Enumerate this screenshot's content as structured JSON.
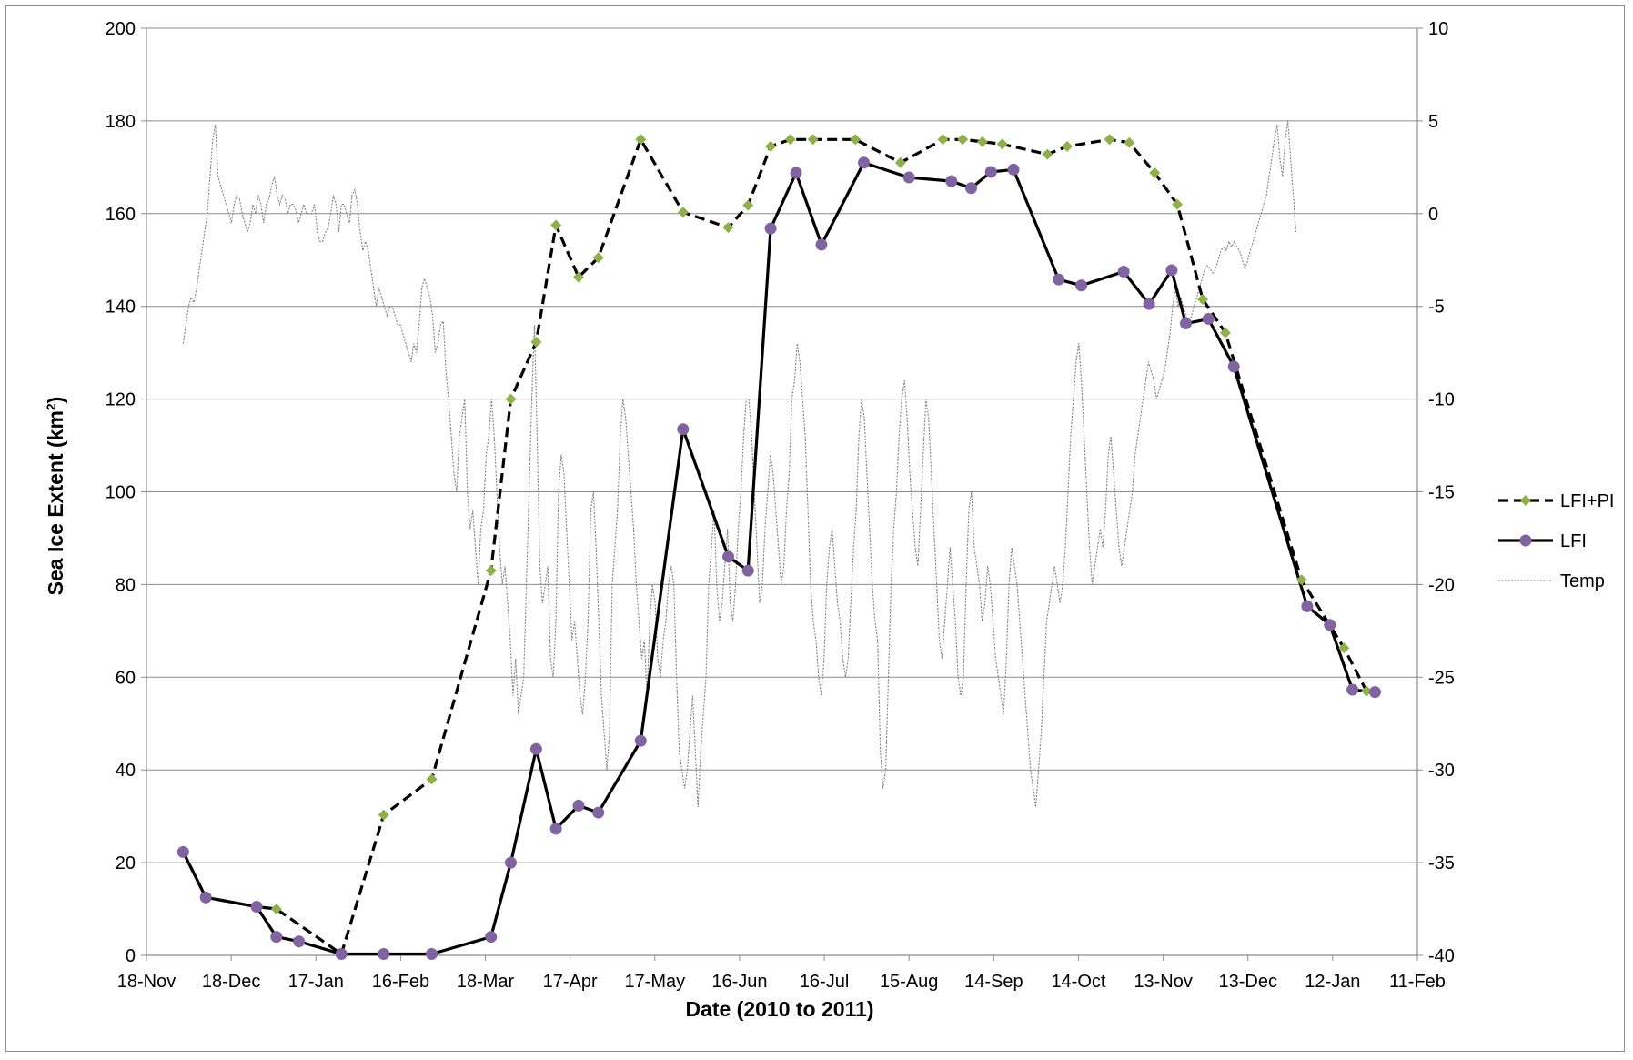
{
  "chart_data": {
    "type": "line",
    "xlabel": "Date (2010 to 2011)",
    "ylabel": "Sea Ice Extent (km",
    "ylabel_sup": "2",
    "ylabel_close": ")",
    "x_axis": {
      "range": [
        "2010-11-18",
        "2012-02-11"
      ],
      "tick_dates": [
        "2010-11-18",
        "2010-12-18",
        "2011-01-17",
        "2011-02-16",
        "2011-03-18",
        "2011-04-17",
        "2011-05-17",
        "2011-06-16",
        "2011-07-16",
        "2011-08-15",
        "2011-09-14",
        "2011-10-14",
        "2011-11-13",
        "2011-12-13",
        "2012-01-12",
        "2012-02-11"
      ],
      "tick_labels": [
        "18-Nov",
        "18-Dec",
        "17-Jan",
        "16-Feb",
        "18-Mar",
        "17-Apr",
        "17-May",
        "16-Jun",
        "16-Jul",
        "15-Aug",
        "14-Sep",
        "14-Oct",
        "13-Nov",
        "13-Dec",
        "12-Jan",
        "11-Feb"
      ]
    },
    "y_left": {
      "range": [
        0,
        200
      ],
      "ticks": [
        "0",
        "20",
        "40",
        "60",
        "80",
        "100",
        "120",
        "140",
        "160",
        "180",
        "200"
      ]
    },
    "y_right": {
      "range": [
        -40,
        10
      ],
      "ticks": [
        "-40",
        "-35",
        "-30",
        "-25",
        "-20",
        "-15",
        "-10",
        "-5",
        "0",
        "5",
        "10"
      ]
    },
    "grid": "horizontal",
    "legend_position": "right",
    "series": [
      {
        "name": "LFI+PI",
        "axis": "left",
        "style": "dashed",
        "line_color": "#000000",
        "marker": "diamond",
        "marker_color": "#8DB04A",
        "points": [
          [
            "2010-12-01",
            22.3
          ],
          [
            "2010-12-09",
            12.5
          ],
          [
            "2010-12-27",
            10.5
          ],
          [
            "2011-01-03",
            10
          ],
          [
            "2011-01-26",
            0.3
          ],
          [
            "2011-02-10",
            30.3
          ],
          [
            "2011-02-27",
            38
          ],
          [
            "2011-03-20",
            83
          ],
          [
            "2011-03-27",
            120
          ],
          [
            "2011-04-05",
            132.3
          ],
          [
            "2011-04-12",
            157.5
          ],
          [
            "2011-04-20",
            146.3
          ],
          [
            "2011-04-27",
            150.5
          ],
          [
            "2011-05-12",
            176
          ],
          [
            "2011-05-27",
            160.3
          ],
          [
            "2011-06-12",
            157
          ],
          [
            "2011-06-19",
            161.8
          ],
          [
            "2011-06-27",
            174.5
          ],
          [
            "2011-07-04",
            176
          ],
          [
            "2011-07-12",
            176
          ],
          [
            "2011-07-27",
            176
          ],
          [
            "2011-08-12",
            171
          ],
          [
            "2011-08-27",
            176
          ],
          [
            "2011-09-03",
            176
          ],
          [
            "2011-09-10",
            175.5
          ],
          [
            "2011-09-17",
            175
          ],
          [
            "2011-10-03",
            172.8
          ],
          [
            "2011-10-10",
            174.5
          ],
          [
            "2011-10-25",
            176
          ],
          [
            "2011-11-01",
            175.3
          ],
          [
            "2011-11-10",
            168.8
          ],
          [
            "2011-11-18",
            162
          ],
          [
            "2011-11-27",
            141.5
          ],
          [
            "2011-12-05",
            134.3
          ],
          [
            "2012-01-01",
            81
          ],
          [
            "2012-01-16",
            66.3
          ],
          [
            "2012-01-24",
            57
          ]
        ]
      },
      {
        "name": "LFI",
        "axis": "left",
        "style": "solid",
        "line_color": "#000000",
        "marker": "circle",
        "marker_color": "#8064A2",
        "points": [
          [
            "2010-12-01",
            22.3
          ],
          [
            "2010-12-09",
            12.5
          ],
          [
            "2010-12-27",
            10.5
          ],
          [
            "2011-01-03",
            4
          ],
          [
            "2011-01-11",
            3
          ],
          [
            "2011-01-26",
            0.3
          ],
          [
            "2011-02-10",
            0.3
          ],
          [
            "2011-02-27",
            0.3
          ],
          [
            "2011-03-20",
            4
          ],
          [
            "2011-03-27",
            20
          ],
          [
            "2011-04-05",
            44.5
          ],
          [
            "2011-04-12",
            27.3
          ],
          [
            "2011-04-20",
            32.3
          ],
          [
            "2011-04-27",
            30.8
          ],
          [
            "2011-05-12",
            46.3
          ],
          [
            "2011-05-27",
            113.5
          ],
          [
            "2011-06-12",
            86
          ],
          [
            "2011-06-19",
            83
          ],
          [
            "2011-06-27",
            156.8
          ],
          [
            "2011-07-06",
            168.8
          ],
          [
            "2011-07-15",
            153.3
          ],
          [
            "2011-07-30",
            171
          ],
          [
            "2011-08-15",
            167.8
          ],
          [
            "2011-08-30",
            167
          ],
          [
            "2011-09-06",
            165.5
          ],
          [
            "2011-09-13",
            169
          ],
          [
            "2011-09-21",
            169.5
          ],
          [
            "2011-10-07",
            145.8
          ],
          [
            "2011-10-15",
            144.5
          ],
          [
            "2011-10-30",
            147.5
          ],
          [
            "2011-11-08",
            140.5
          ],
          [
            "2011-11-16",
            147.8
          ],
          [
            "2011-11-21",
            136.3
          ],
          [
            "2011-11-29",
            137.3
          ],
          [
            "2011-12-08",
            127
          ],
          [
            "2012-01-03",
            75.3
          ],
          [
            "2012-01-11",
            71.3
          ],
          [
            "2012-01-19",
            57.3
          ],
          [
            "2012-01-27",
            56.8
          ]
        ]
      },
      {
        "name": "Temp",
        "axis": "right",
        "style": "dotted",
        "line_color": "#808080",
        "start_date": "2010-12-01",
        "end_date": "2011-12-30",
        "values": [
          -7,
          -6,
          -5,
          -4.5,
          -4.8,
          -4,
          -3,
          -2,
          -1,
          0,
          2,
          4,
          4.8,
          2,
          1.5,
          1,
          0.5,
          0,
          -0.5,
          0.5,
          1,
          0.8,
          0,
          -0.5,
          -1,
          -0.5,
          0.5,
          0,
          1,
          0.5,
          -0.5,
          0.5,
          0.8,
          1.5,
          2,
          1,
          0.5,
          1,
          0.8,
          0,
          0.5,
          0.5,
          0.2,
          -0.5,
          0,
          0.5,
          0,
          0,
          0,
          0.5,
          -1,
          -1.5,
          -1.5,
          -1,
          -0.8,
          0,
          1,
          0.5,
          -1,
          0.5,
          0.5,
          0,
          -0.5,
          1,
          1.3,
          0.5,
          -1,
          -2,
          -1.5,
          -2,
          -3,
          -4,
          -5,
          -4,
          -4.5,
          -5,
          -5.5,
          -5,
          -5,
          -5.5,
          -6,
          -6,
          -6.5,
          -7,
          -7.5,
          -8,
          -7,
          -7.5,
          -6,
          -4,
          -3.5,
          -4,
          -4.5,
          -5.5,
          -7.5,
          -7,
          -6,
          -5.8,
          -8.5,
          -10,
          -12,
          -14,
          -15,
          -12,
          -11,
          -10,
          -15,
          -17,
          -16,
          -18,
          -20,
          -17,
          -16,
          -13,
          -12,
          -10,
          -12,
          -15,
          -18,
          -20,
          -19,
          -21,
          -23,
          -26,
          -24,
          -27,
          -26,
          -25,
          -20,
          -15,
          -10,
          -6,
          -12,
          -19,
          -21,
          -20,
          -19,
          -24,
          -25,
          -22,
          -15,
          -13,
          -14,
          -17,
          -20,
          -23,
          -22,
          -24,
          -26,
          -27,
          -25,
          -22,
          -16,
          -15,
          -18,
          -22,
          -26,
          -28,
          -30,
          -28,
          -20,
          -18,
          -16,
          -12,
          -10,
          -11,
          -13,
          -15,
          -17,
          -20,
          -22,
          -24,
          -23,
          -26,
          -22,
          -20,
          -21,
          -24,
          -25,
          -23,
          -22,
          -20,
          -19,
          -20,
          -25,
          -29,
          -30,
          -31,
          -30,
          -28,
          -26,
          -29,
          -32,
          -29,
          -27,
          -25,
          -20,
          -18,
          -16,
          -20,
          -22,
          -21,
          -19,
          -17,
          -21,
          -22,
          -20,
          -17,
          -15,
          -12,
          -10,
          -10,
          -12,
          -15,
          -18,
          -21,
          -20,
          -17,
          -15,
          -13,
          -14,
          -16,
          -18,
          -20,
          -19,
          -16,
          -14,
          -10,
          -9,
          -7,
          -8,
          -10,
          -12,
          -16,
          -20,
          -22,
          -23,
          -25,
          -26,
          -24,
          -20,
          -18,
          -17,
          -19,
          -21,
          -22,
          -24,
          -25,
          -24,
          -21,
          -18,
          -16,
          -12,
          -10,
          -11,
          -14,
          -17,
          -20,
          -22,
          -23,
          -29,
          -31,
          -30,
          -25,
          -20,
          -17,
          -15,
          -12,
          -10,
          -9,
          -11,
          -14,
          -16,
          -18,
          -19,
          -16,
          -13,
          -10,
          -11,
          -14,
          -17,
          -20,
          -23,
          -24,
          -22,
          -20,
          -18,
          -20,
          -22,
          -25,
          -26,
          -25,
          -20,
          -16,
          -15,
          -18,
          -19,
          -20,
          -22,
          -21,
          -19,
          -20,
          -22,
          -24,
          -25,
          -26,
          -27,
          -24,
          -20,
          -18,
          -19,
          -20,
          -22,
          -24,
          -26,
          -28,
          -30,
          -31,
          -32,
          -30,
          -28,
          -25,
          -22,
          -21,
          -20,
          -19,
          -20,
          -21,
          -20,
          -18,
          -15,
          -12,
          -10,
          -8,
          -7,
          -9,
          -12,
          -15,
          -18,
          -20,
          -19,
          -18,
          -17,
          -18,
          -16,
          -13,
          -12,
          -14,
          -16,
          -18,
          -19,
          -18,
          -17,
          -16,
          -15,
          -13,
          -12,
          -11,
          -10,
          -9,
          -8,
          -8.5,
          -9,
          -10,
          -9.5,
          -9,
          -8.5,
          -7.5,
          -6.5,
          -5,
          -4,
          -5,
          -4.5,
          -5,
          -5.5,
          -6,
          -5.5,
          -5,
          -4.5,
          -4,
          -3.5,
          -3,
          -2.8,
          -3,
          -3.2,
          -3,
          -2.5,
          -2,
          -1.8,
          -2,
          -1.5,
          -1.8,
          -1.5,
          -1.8,
          -2,
          -2.5,
          -3,
          -2.5,
          -2,
          -1.5,
          -1,
          -0.5,
          0,
          0.5,
          1,
          2,
          3,
          4,
          4.8,
          3,
          2,
          4,
          5,
          3,
          1,
          -1
        ]
      }
    ]
  }
}
